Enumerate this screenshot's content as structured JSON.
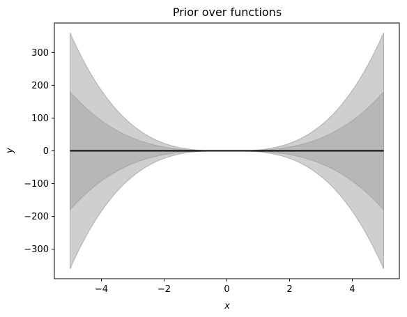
{
  "chart_data": {
    "type": "area",
    "title": "Prior over functions",
    "xlabel": "x",
    "ylabel": "y",
    "xlim": [
      -5.5,
      5.5
    ],
    "ylim": [
      -390,
      390
    ],
    "xticks": [
      -4,
      -2,
      0,
      2,
      4
    ],
    "xtick_labels": [
      "−4",
      "−2",
      "0",
      "2",
      "4"
    ],
    "yticks": [
      -300,
      -200,
      -100,
      0,
      100,
      200,
      300
    ],
    "ytick_labels": [
      "−300",
      "−200",
      "−100",
      "0",
      "100",
      "200",
      "300"
    ],
    "grid": false,
    "legend": null,
    "x_range": [
      -5,
      5
    ],
    "mean": {
      "x": [
        -5,
        5
      ],
      "y": [
        0,
        0
      ],
      "color": "#000000"
    },
    "bands": [
      {
        "level": "outer",
        "upper_at_x_eq_5": 360,
        "shape": "cubic",
        "color": "#bdbdbd"
      },
      {
        "level": "inner",
        "upper_at_x_eq_5": 180,
        "shape": "cubic",
        "color": "#a8a8a8"
      }
    ],
    "band_points": {
      "x": [
        -5,
        -4,
        -3,
        -2,
        -1,
        0,
        1,
        2,
        3,
        4,
        5
      ],
      "outer_upper": [
        360,
        184,
        78,
        23,
        3,
        0,
        3,
        23,
        78,
        184,
        360
      ],
      "outer_lower": [
        -360,
        -184,
        -78,
        -23,
        -3,
        0,
        -3,
        -23,
        -78,
        -184,
        -360
      ],
      "inner_upper": [
        180,
        92,
        39,
        11.5,
        1.5,
        0,
        1.5,
        11.5,
        39,
        92,
        180
      ],
      "inner_lower": [
        -180,
        -92,
        -39,
        -11.5,
        -1.5,
        0,
        -1.5,
        -11.5,
        -39,
        -92,
        -180
      ]
    }
  }
}
